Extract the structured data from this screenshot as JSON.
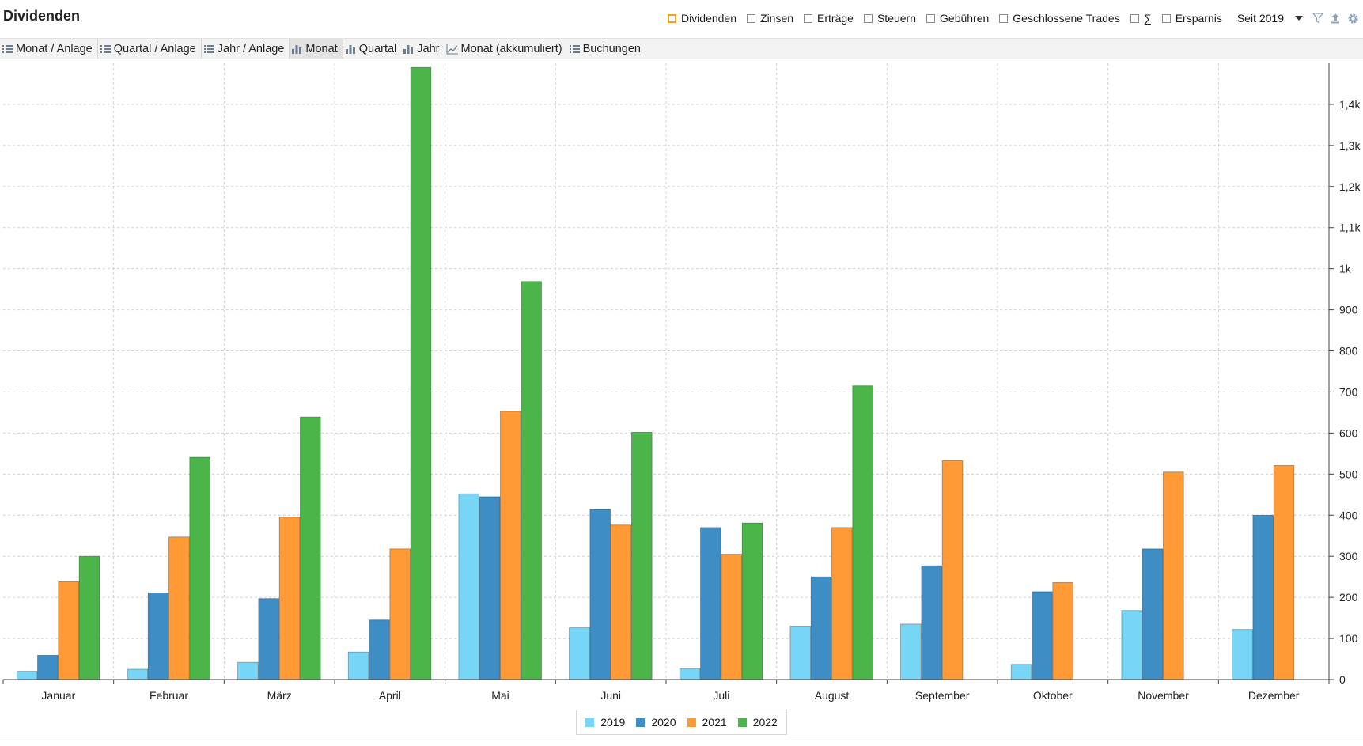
{
  "header": {
    "title": "Dividenden",
    "filters": [
      {
        "label": "Dividenden",
        "checked": true
      },
      {
        "label": "Zinsen",
        "checked": false
      },
      {
        "label": "Erträge",
        "checked": false
      },
      {
        "label": "Steuern",
        "checked": false
      },
      {
        "label": "Gebühren",
        "checked": false
      },
      {
        "label": "Geschlossene Trades",
        "checked": false
      },
      {
        "label": "∑",
        "checked": false
      },
      {
        "label": "Ersparnis",
        "checked": false
      }
    ],
    "since": "Seit 2019"
  },
  "toolbar": {
    "tabs": [
      {
        "label": "Monat / Anlage",
        "icon": "list-icon"
      },
      {
        "label": "Quartal / Anlage",
        "icon": "list-icon"
      },
      {
        "label": "Jahr / Anlage",
        "icon": "list-icon"
      },
      {
        "label": "Monat",
        "icon": "bar-chart-icon"
      },
      {
        "label": "Quartal",
        "icon": "bar-chart-icon"
      },
      {
        "label": "Jahr",
        "icon": "bar-chart-icon"
      },
      {
        "label": "Monat (akkumuliert)",
        "icon": "line-chart-icon"
      },
      {
        "label": "Buchungen",
        "icon": "list-icon"
      }
    ],
    "active": "Monat"
  },
  "chart_data": {
    "type": "bar",
    "title": "",
    "categories": [
      "Januar",
      "Februar",
      "März",
      "April",
      "Mai",
      "Juni",
      "Juli",
      "August",
      "September",
      "Oktober",
      "November",
      "Dezember"
    ],
    "series": [
      {
        "name": "2019",
        "color": "#77d5f6",
        "values": [
          20,
          25,
          42,
          67,
          452,
          126,
          27,
          130,
          135,
          37,
          168,
          122
        ]
      },
      {
        "name": "2020",
        "color": "#3e8dc4",
        "values": [
          59,
          211,
          197,
          145,
          445,
          414,
          370,
          250,
          277,
          214,
          318,
          400
        ]
      },
      {
        "name": "2021",
        "color": "#ff9a36",
        "values": [
          238,
          347,
          395,
          318,
          653,
          376,
          305,
          370,
          533,
          236,
          505,
          521
        ]
      },
      {
        "name": "2022",
        "color": "#4bb54a",
        "values": [
          300,
          541,
          639,
          1490,
          969,
          602,
          381,
          715,
          0,
          0,
          0,
          0
        ]
      }
    ],
    "yticks": [
      "0",
      "100",
      "200",
      "300",
      "400",
      "500",
      "600",
      "700",
      "800",
      "900",
      "1k",
      "1,1k",
      "1,2k",
      "1,3k",
      "1,4k"
    ],
    "ylim": [
      0,
      1500
    ],
    "grid": true,
    "legend_position": "bottom-center"
  }
}
